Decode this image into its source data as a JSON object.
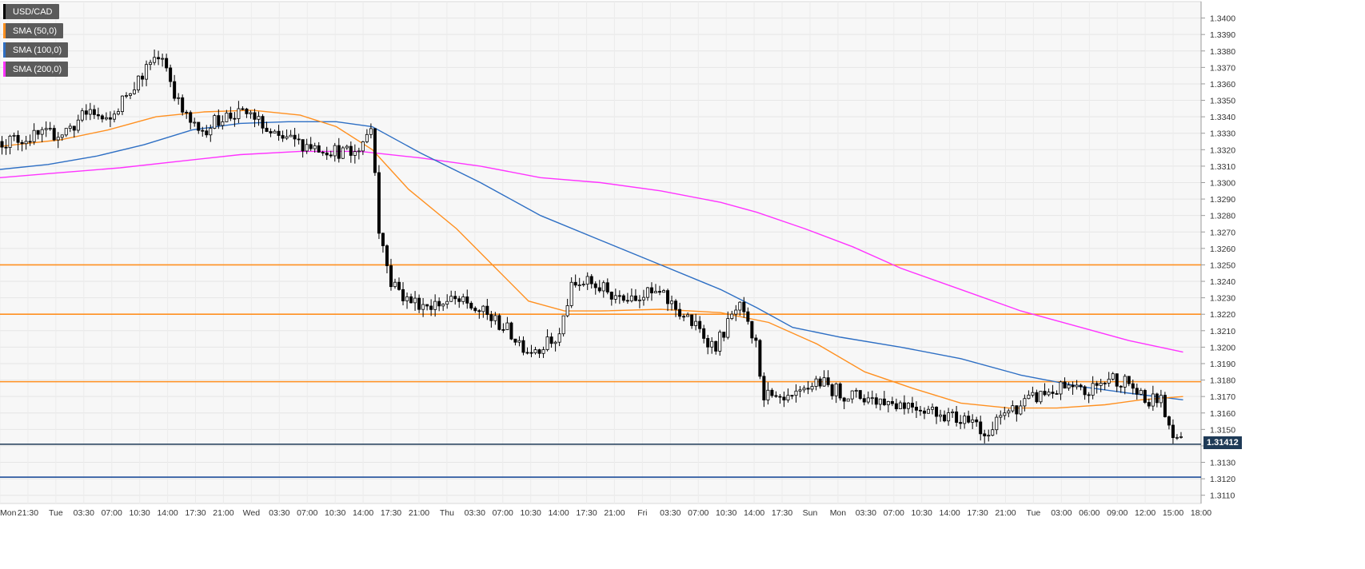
{
  "legend": [
    {
      "label": "USD/CAD",
      "color": "#000000"
    },
    {
      "label": "SMA (50,0)",
      "color": "#ff9020"
    },
    {
      "label": "SMA (100,0)",
      "color": "#2e6fc4"
    },
    {
      "label": "SMA (200,0)",
      "color": "#ff33ff"
    }
  ],
  "chart_data": {
    "type": "candlestick",
    "instrument": "USD/CAD",
    "ylim": [
      1.3105,
      1.341
    ],
    "y_ticks": [
      "1.3400",
      "1.3390",
      "1.3380",
      "1.3370",
      "1.3360",
      "1.3350",
      "1.3340",
      "1.3330",
      "1.3320",
      "1.3310",
      "1.3300",
      "1.3290",
      "1.3280",
      "1.3270",
      "1.3260",
      "1.3250",
      "1.3240",
      "1.3230",
      "1.3220",
      "1.3210",
      "1.3200",
      "1.3190",
      "1.3180",
      "1.3170",
      "1.3160",
      "1.3150",
      "1.3140",
      "1.3130",
      "1.3120",
      "1.3110"
    ],
    "x_ticks": [
      "Mon",
      "21:30",
      "Tue",
      "03:30",
      "07:00",
      "10:30",
      "14:00",
      "17:30",
      "21:00",
      "Wed",
      "03:30",
      "07:00",
      "10:30",
      "14:00",
      "17:30",
      "21:00",
      "Thu",
      "03:30",
      "07:00",
      "10:30",
      "14:00",
      "17:30",
      "21:00",
      "Fri",
      "03:30",
      "07:00",
      "10:30",
      "14:00",
      "17:30",
      "Sun",
      "Mon",
      "03:30",
      "07:00",
      "10:30",
      "14:00",
      "17:30",
      "21:00",
      "Tue",
      "03:00",
      "06:00",
      "09:00",
      "12:00",
      "15:00",
      "18:00"
    ],
    "horizontal_levels": [
      {
        "value": 1.325,
        "color": "#ff9020"
      },
      {
        "value": 1.322,
        "color": "#ff9020"
      },
      {
        "value": 1.3179,
        "color": "#ff9020"
      },
      {
        "value": 1.3141,
        "color": "#1f3b57"
      },
      {
        "value": 1.3121,
        "color": "#1f4f9a"
      }
    ],
    "last_price": "1.31412",
    "close_path": [
      [
        0,
        1.3325
      ],
      [
        0.03,
        1.3328
      ],
      [
        0.05,
        1.333
      ],
      [
        0.06,
        1.3334
      ],
      [
        0.075,
        1.3344
      ],
      [
        0.09,
        1.3335
      ],
      [
        0.105,
        1.3354
      ],
      [
        0.12,
        1.3368
      ],
      [
        0.135,
        1.3378
      ],
      [
        0.15,
        1.3345
      ],
      [
        0.165,
        1.333
      ],
      [
        0.185,
        1.334
      ],
      [
        0.21,
        1.3342
      ],
      [
        0.225,
        1.3328
      ],
      [
        0.25,
        1.3324
      ],
      [
        0.275,
        1.332
      ],
      [
        0.295,
        1.3317
      ],
      [
        0.31,
        1.3335
      ],
      [
        0.315,
        1.3275
      ],
      [
        0.325,
        1.324
      ],
      [
        0.34,
        1.3228
      ],
      [
        0.36,
        1.3226
      ],
      [
        0.38,
        1.3228
      ],
      [
        0.4,
        1.3222
      ],
      [
        0.42,
        1.3212
      ],
      [
        0.44,
        1.3198
      ],
      [
        0.465,
        1.3205
      ],
      [
        0.475,
        1.3235
      ],
      [
        0.49,
        1.324
      ],
      [
        0.51,
        1.3232
      ],
      [
        0.53,
        1.3232
      ],
      [
        0.55,
        1.3232
      ],
      [
        0.565,
        1.3222
      ],
      [
        0.58,
        1.3212
      ],
      [
        0.595,
        1.32
      ],
      [
        0.615,
        1.3225
      ],
      [
        0.63,
        1.32
      ],
      [
        0.635,
        1.3172
      ],
      [
        0.65,
        1.3165
      ],
      [
        0.665,
        1.317
      ],
      [
        0.68,
        1.318
      ],
      [
        0.7,
        1.3172
      ],
      [
        0.73,
        1.3168
      ],
      [
        0.76,
        1.3165
      ],
      [
        0.785,
        1.316
      ],
      [
        0.8,
        1.3155
      ],
      [
        0.81,
        1.316
      ],
      [
        0.82,
        1.3142
      ],
      [
        0.835,
        1.316
      ],
      [
        0.85,
        1.3165
      ],
      [
        0.87,
        1.3172
      ],
      [
        0.885,
        1.3175
      ],
      [
        0.905,
        1.3172
      ],
      [
        0.925,
        1.3182
      ],
      [
        0.94,
        1.3178
      ],
      [
        0.955,
        1.3165
      ],
      [
        0.965,
        1.317
      ],
      [
        0.975,
        1.315
      ],
      [
        0.985,
        1.3141
      ]
    ],
    "sma_50": [
      [
        0,
        1.3322
      ],
      [
        0.05,
        1.3326
      ],
      [
        0.09,
        1.3332
      ],
      [
        0.13,
        1.334
      ],
      [
        0.17,
        1.3343
      ],
      [
        0.21,
        1.3344
      ],
      [
        0.25,
        1.3341
      ],
      [
        0.28,
        1.3334
      ],
      [
        0.31,
        1.332
      ],
      [
        0.34,
        1.3296
      ],
      [
        0.38,
        1.3272
      ],
      [
        0.41,
        1.325
      ],
      [
        0.44,
        1.3228
      ],
      [
        0.47,
        1.3222
      ],
      [
        0.5,
        1.3222
      ],
      [
        0.55,
        1.3223
      ],
      [
        0.6,
        1.3221
      ],
      [
        0.64,
        1.3215
      ],
      [
        0.68,
        1.3202
      ],
      [
        0.72,
        1.3185
      ],
      [
        0.76,
        1.3175
      ],
      [
        0.8,
        1.3166
      ],
      [
        0.84,
        1.3163
      ],
      [
        0.88,
        1.3163
      ],
      [
        0.92,
        1.3165
      ],
      [
        0.95,
        1.3168
      ],
      [
        0.985,
        1.317
      ]
    ],
    "sma_100": [
      [
        0,
        1.3308
      ],
      [
        0.04,
        1.3311
      ],
      [
        0.08,
        1.3316
      ],
      [
        0.12,
        1.3323
      ],
      [
        0.16,
        1.3332
      ],
      [
        0.2,
        1.3336
      ],
      [
        0.24,
        1.3337
      ],
      [
        0.28,
        1.3337
      ],
      [
        0.31,
        1.3334
      ],
      [
        0.35,
        1.3318
      ],
      [
        0.4,
        1.33
      ],
      [
        0.45,
        1.328
      ],
      [
        0.5,
        1.3265
      ],
      [
        0.55,
        1.325
      ],
      [
        0.6,
        1.3235
      ],
      [
        0.63,
        1.3224
      ],
      [
        0.66,
        1.3212
      ],
      [
        0.7,
        1.3206
      ],
      [
        0.75,
        1.32
      ],
      [
        0.8,
        1.3193
      ],
      [
        0.85,
        1.3183
      ],
      [
        0.9,
        1.3176
      ],
      [
        0.94,
        1.3172
      ],
      [
        0.985,
        1.3168
      ]
    ],
    "sma_200": [
      [
        0,
        1.3303
      ],
      [
        0.05,
        1.3306
      ],
      [
        0.1,
        1.3309
      ],
      [
        0.15,
        1.3313
      ],
      [
        0.2,
        1.3317
      ],
      [
        0.25,
        1.3319
      ],
      [
        0.3,
        1.3319
      ],
      [
        0.35,
        1.3315
      ],
      [
        0.4,
        1.331
      ],
      [
        0.45,
        1.3303
      ],
      [
        0.5,
        1.33
      ],
      [
        0.55,
        1.3295
      ],
      [
        0.6,
        1.3288
      ],
      [
        0.63,
        1.3282
      ],
      [
        0.67,
        1.3272
      ],
      [
        0.71,
        1.3261
      ],
      [
        0.75,
        1.3248
      ],
      [
        0.8,
        1.3235
      ],
      [
        0.85,
        1.3222
      ],
      [
        0.9,
        1.3212
      ],
      [
        0.94,
        1.3204
      ],
      [
        0.985,
        1.3197
      ]
    ]
  }
}
